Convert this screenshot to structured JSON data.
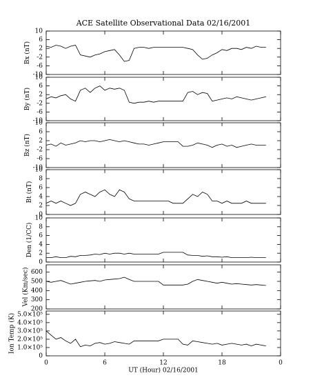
{
  "chart_data": [
    {
      "type": "line",
      "title": "ACE Satellite Observational Data   02/16/2001",
      "y_label": "Bx (nT)",
      "x": [
        0,
        0.5,
        1,
        1.5,
        2,
        2.5,
        3,
        3.5,
        4,
        4.5,
        5,
        5.5,
        6,
        6.5,
        7,
        7.5,
        8,
        8.5,
        9,
        9.5,
        10,
        10.5,
        11,
        11.5,
        12,
        12.5,
        13,
        13.5,
        14,
        14.5,
        15,
        15.5,
        16,
        16.5,
        17,
        17.5,
        18,
        18.5,
        19,
        19.5,
        20,
        20.5,
        21,
        21.5,
        22,
        22.5
      ],
      "xlim": [
        0,
        24
      ],
      "xticks": [
        0,
        6,
        12,
        18,
        {
          "value": 24,
          "label": "0"
        }
      ],
      "ylim": [
        -10,
        10
      ],
      "yticks": [
        -10,
        -6,
        -2,
        2,
        6,
        10
      ],
      "series": [
        {
          "color": "#000000",
          "values": [
            3,
            2.5,
            3.5,
            3,
            2,
            3,
            3.5,
            -1,
            -1.5,
            -2,
            -1,
            -0.5,
            0.5,
            1,
            1.5,
            -1,
            -4,
            -3.5,
            2,
            2.5,
            2.5,
            2,
            2.5,
            2.5,
            2.5,
            2.5,
            2.5,
            2.5,
            2.5,
            2,
            1.5,
            -1,
            -3,
            -2.5,
            -1,
            0,
            1.5,
            1,
            2,
            2,
            1.5,
            2.5,
            2,
            3,
            2.5,
            2.5
          ]
        }
      ]
    },
    {
      "type": "line",
      "y_label": "By (nT)",
      "x": [
        0,
        0.5,
        1,
        1.5,
        2,
        2.5,
        3,
        3.5,
        4,
        4.5,
        5,
        5.5,
        6,
        6.5,
        7,
        7.5,
        8,
        8.5,
        9,
        9.5,
        10,
        10.5,
        11,
        11.5,
        12,
        12.5,
        13,
        13.5,
        14,
        14.5,
        15,
        15.5,
        16,
        16.5,
        17,
        17.5,
        18,
        18.5,
        19,
        19.5,
        20,
        20.5,
        21,
        21.5,
        22,
        22.5
      ],
      "xlim": [
        0,
        24
      ],
      "xticks": [
        0,
        6,
        12,
        18,
        {
          "value": 24,
          "label": "0"
        }
      ],
      "ylim": [
        -10,
        10
      ],
      "yticks": [
        -10,
        -6,
        -2,
        2,
        6,
        10
      ],
      "series": [
        {
          "color": "#000000",
          "values": [
            0,
            1,
            0.5,
            1.5,
            2,
            0,
            -1,
            4,
            5,
            3,
            5,
            6,
            4,
            5,
            4.5,
            5,
            4,
            -1.5,
            -2,
            -1.5,
            -1.5,
            -1,
            -1.5,
            -1,
            -1,
            -1,
            -1,
            -1,
            -1,
            3,
            3.5,
            2,
            3,
            2.5,
            -1,
            -0.5,
            0,
            0.5,
            0,
            1,
            0.5,
            0,
            -0.5,
            0,
            0.5,
            1
          ]
        }
      ]
    },
    {
      "type": "line",
      "y_label": "Bz (nT)",
      "x": [
        0,
        0.5,
        1,
        1.5,
        2,
        2.5,
        3,
        3.5,
        4,
        4.5,
        5,
        5.5,
        6,
        6.5,
        7,
        7.5,
        8,
        8.5,
        9,
        9.5,
        10,
        10.5,
        11,
        11.5,
        12,
        12.5,
        13,
        13.5,
        14,
        14.5,
        15,
        15.5,
        16,
        16.5,
        17,
        17.5,
        18,
        18.5,
        19,
        19.5,
        20,
        20.5,
        21,
        21.5,
        22,
        22.5
      ],
      "xlim": [
        0,
        24
      ],
      "xticks": [
        0,
        6,
        12,
        18,
        {
          "value": 24,
          "label": "0"
        }
      ],
      "ylim": [
        -10,
        10
      ],
      "yticks": [
        -10,
        -6,
        -2,
        2,
        6,
        10
      ],
      "series": [
        {
          "color": "#000000",
          "values": [
            0,
            0.5,
            -0.5,
            1,
            0,
            0.5,
            1,
            2,
            1.5,
            2,
            2,
            1.5,
            2,
            2.5,
            2,
            1.5,
            2,
            1.5,
            1,
            0.5,
            0.5,
            0,
            0.5,
            1,
            1.5,
            1.5,
            1.5,
            1.5,
            -0.5,
            -0.5,
            0,
            1,
            0.5,
            0,
            -1,
            0,
            0.5,
            -0.5,
            0,
            -1,
            -0.5,
            0,
            0.5,
            0,
            0,
            0
          ]
        }
      ]
    },
    {
      "type": "line",
      "y_label": "Bt (nT)",
      "x": [
        0,
        0.5,
        1,
        1.5,
        2,
        2.5,
        3,
        3.5,
        4,
        4.5,
        5,
        5.5,
        6,
        6.5,
        7,
        7.5,
        8,
        8.5,
        9,
        9.5,
        10,
        10.5,
        11,
        11.5,
        12,
        12.5,
        13,
        13.5,
        14,
        14.5,
        15,
        15.5,
        16,
        16.5,
        17,
        17.5,
        18,
        18.5,
        19,
        19.5,
        20,
        20.5,
        21,
        21.5,
        22,
        22.5
      ],
      "xlim": [
        0,
        24
      ],
      "xticks": [
        0,
        6,
        12,
        18,
        {
          "value": 24,
          "label": "0"
        }
      ],
      "ylim": [
        0,
        10
      ],
      "yticks": [
        0,
        2,
        4,
        6,
        8,
        10
      ],
      "series": [
        {
          "color": "#000000",
          "values": [
            2.5,
            3,
            2.5,
            3,
            2.5,
            2,
            2.5,
            4.5,
            5,
            4.5,
            4,
            5,
            5.5,
            4.5,
            4,
            5.5,
            5,
            3.5,
            3,
            3,
            3,
            3,
            3,
            3,
            3,
            3,
            2.5,
            2.5,
            2.5,
            3.5,
            4.5,
            4,
            5,
            4.5,
            3,
            3,
            2.5,
            3,
            2.5,
            2.5,
            2.5,
            3,
            2.5,
            2.5,
            2.5,
            2.5
          ]
        }
      ]
    },
    {
      "type": "line",
      "y_label": "Den (1/CC)",
      "x": [
        0,
        0.5,
        1,
        1.5,
        2,
        2.5,
        3,
        3.5,
        4,
        4.5,
        5,
        5.5,
        6,
        6.5,
        7,
        7.5,
        8,
        8.5,
        9,
        9.5,
        10,
        10.5,
        11,
        11.5,
        12,
        12.5,
        13,
        13.5,
        14,
        14.5,
        15,
        15.5,
        16,
        16.5,
        17,
        17.5,
        18,
        18.5,
        19,
        19.5,
        20,
        20.5,
        21,
        21.5,
        22,
        22.5
      ],
      "xlim": [
        0,
        24
      ],
      "xticks": [
        0,
        6,
        12,
        18,
        {
          "value": 24,
          "label": "0"
        }
      ],
      "ylim": [
        0,
        10
      ],
      "yticks": [
        0,
        2,
        4,
        6,
        8,
        10
      ],
      "series": [
        {
          "color": "#000000",
          "values": [
            1,
            1,
            1.2,
            1,
            1,
            1.3,
            1.2,
            1.5,
            1.5,
            1.6,
            1.8,
            1.7,
            2,
            1.8,
            2,
            2,
            1.8,
            2,
            1.8,
            1.8,
            1.8,
            1.8,
            1.8,
            1.8,
            2.2,
            2.2,
            2.2,
            2.2,
            2.2,
            1.6,
            1.5,
            1.5,
            1.3,
            1.4,
            1.2,
            1.2,
            1.1,
            1.2,
            1,
            1,
            1,
            1,
            1.1,
            1,
            1,
            1
          ]
        }
      ]
    },
    {
      "type": "line",
      "y_label": "Vel (Km/sec)",
      "x": [
        0,
        0.5,
        1,
        1.5,
        2,
        2.5,
        3,
        3.5,
        4,
        4.5,
        5,
        5.5,
        6,
        6.5,
        7,
        7.5,
        8,
        8.5,
        9,
        9.5,
        10,
        10.5,
        11,
        11.5,
        12,
        12.5,
        13,
        13.5,
        14,
        14.5,
        15,
        15.5,
        16,
        16.5,
        17,
        17.5,
        18,
        18.5,
        19,
        19.5,
        20,
        20.5,
        21,
        21.5,
        22,
        22.5
      ],
      "xlim": [
        0,
        24
      ],
      "xticks": [
        0,
        6,
        12,
        18,
        {
          "value": 24,
          "label": "0"
        }
      ],
      "ylim": [
        200,
        680
      ],
      "yticks": [
        200,
        300,
        400,
        500,
        600
      ],
      "series": [
        {
          "color": "#000000",
          "values": [
            500,
            490,
            500,
            510,
            490,
            470,
            480,
            490,
            500,
            505,
            510,
            500,
            515,
            520,
            525,
            530,
            545,
            520,
            500,
            500,
            500,
            500,
            500,
            500,
            460,
            460,
            460,
            460,
            460,
            470,
            500,
            520,
            510,
            500,
            490,
            480,
            490,
            480,
            470,
            475,
            470,
            465,
            460,
            465,
            460,
            455
          ]
        }
      ]
    },
    {
      "type": "line",
      "y_label": "Ion Temp (K)",
      "x_label": "UT (Hour)  02/16/2001",
      "x": [
        0,
        0.5,
        1,
        1.5,
        2,
        2.5,
        3,
        3.5,
        4,
        4.5,
        5,
        5.5,
        6,
        6.5,
        7,
        7.5,
        8,
        8.5,
        9,
        9.5,
        10,
        10.5,
        11,
        11.5,
        12,
        12.5,
        13,
        13.5,
        14,
        14.5,
        15,
        15.5,
        16,
        16.5,
        17,
        17.5,
        18,
        18.5,
        19,
        19.5,
        20,
        20.5,
        21,
        21.5,
        22,
        22.5
      ],
      "xlim": [
        0,
        24
      ],
      "xticks": [
        0,
        6,
        12,
        18,
        {
          "value": 24,
          "label": "0"
        }
      ],
      "ylim": [
        0,
        540000
      ],
      "yticks": [
        0,
        {
          "value": 100000,
          "label": "1.0×10⁵"
        },
        {
          "value": 200000,
          "label": "2.0×10⁵"
        },
        {
          "value": 300000,
          "label": "3.0×10⁵"
        },
        {
          "value": 400000,
          "label": "4.0×10⁵"
        },
        {
          "value": 500000,
          "label": "5.0×10⁵"
        }
      ],
      "series": [
        {
          "color": "#000000",
          "values": [
            300000,
            250000,
            200000,
            220000,
            180000,
            150000,
            200000,
            110000,
            130000,
            120000,
            150000,
            160000,
            140000,
            150000,
            170000,
            160000,
            150000,
            140000,
            180000,
            180000,
            180000,
            180000,
            180000,
            180000,
            200000,
            200000,
            200000,
            200000,
            140000,
            130000,
            180000,
            170000,
            160000,
            150000,
            140000,
            150000,
            130000,
            140000,
            150000,
            140000,
            130000,
            140000,
            120000,
            140000,
            130000,
            120000
          ]
        }
      ]
    }
  ]
}
